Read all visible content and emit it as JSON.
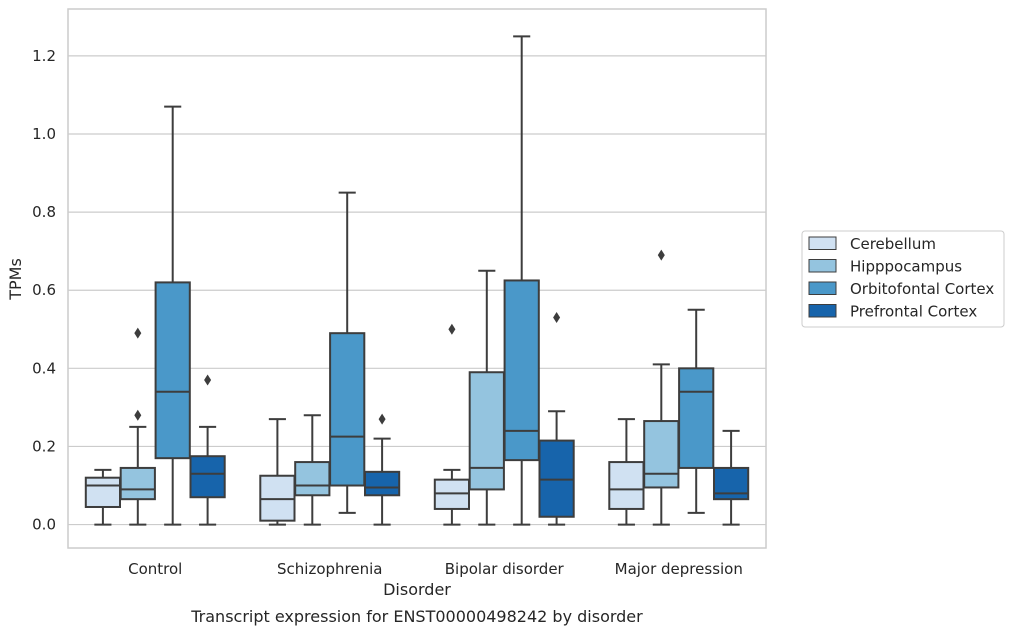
{
  "chart_data": {
    "type": "box",
    "xlabel": "Disorder",
    "ylabel": "TPMs",
    "caption": "Transcript expression for ENST00000498242 by disorder",
    "ylim": [
      -0.06,
      1.32
    ],
    "yticks": [
      0.0,
      0.2,
      0.4,
      0.6,
      0.8,
      1.0,
      1.2
    ],
    "ytick_labels": [
      "0.0",
      "0.2",
      "0.4",
      "0.6",
      "0.8",
      "1.0",
      "1.2"
    ],
    "grid": "horizontal",
    "legend_position": "right",
    "categories": [
      "Control",
      "Schizophrenia",
      "Bipolar disorder",
      "Major depression"
    ],
    "series": [
      {
        "name": "Cerebellum",
        "color": "#d0e1f2",
        "boxes": [
          {
            "whislo": 0.0,
            "q1": 0.045,
            "median": 0.1,
            "q3": 0.12,
            "whishi": 0.14,
            "fliers": []
          },
          {
            "whislo": 0.0,
            "q1": 0.01,
            "median": 0.065,
            "q3": 0.125,
            "whishi": 0.27,
            "fliers": []
          },
          {
            "whislo": 0.0,
            "q1": 0.04,
            "median": 0.08,
            "q3": 0.115,
            "whishi": 0.14,
            "fliers": [
              0.5
            ]
          },
          {
            "whislo": 0.0,
            "q1": 0.04,
            "median": 0.09,
            "q3": 0.16,
            "whishi": 0.27,
            "fliers": []
          }
        ]
      },
      {
        "name": "Hipppocampus",
        "color": "#94c4df",
        "boxes": [
          {
            "whislo": 0.0,
            "q1": 0.065,
            "median": 0.09,
            "q3": 0.145,
            "whishi": 0.25,
            "fliers": [
              0.28,
              0.49
            ]
          },
          {
            "whislo": 0.0,
            "q1": 0.075,
            "median": 0.1,
            "q3": 0.16,
            "whishi": 0.28,
            "fliers": []
          },
          {
            "whislo": 0.0,
            "q1": 0.09,
            "median": 0.145,
            "q3": 0.39,
            "whishi": 0.65,
            "fliers": []
          },
          {
            "whislo": 0.0,
            "q1": 0.095,
            "median": 0.13,
            "q3": 0.265,
            "whishi": 0.41,
            "fliers": [
              0.69
            ]
          }
        ]
      },
      {
        "name": "Orbitofontal Cortex",
        "color": "#4a98c9",
        "boxes": [
          {
            "whislo": 0.0,
            "q1": 0.17,
            "median": 0.34,
            "q3": 0.62,
            "whishi": 1.07,
            "fliers": []
          },
          {
            "whislo": 0.03,
            "q1": 0.1,
            "median": 0.225,
            "q3": 0.49,
            "whishi": 0.85,
            "fliers": []
          },
          {
            "whislo": 0.0,
            "q1": 0.165,
            "median": 0.24,
            "q3": 0.625,
            "whishi": 1.25,
            "fliers": []
          },
          {
            "whislo": 0.03,
            "q1": 0.145,
            "median": 0.34,
            "q3": 0.4,
            "whishi": 0.55,
            "fliers": []
          }
        ]
      },
      {
        "name": "Prefrontal Cortex",
        "color": "#1764ab",
        "boxes": [
          {
            "whislo": 0.0,
            "q1": 0.07,
            "median": 0.13,
            "q3": 0.175,
            "whishi": 0.25,
            "fliers": [
              0.37
            ]
          },
          {
            "whislo": 0.0,
            "q1": 0.075,
            "median": 0.095,
            "q3": 0.135,
            "whishi": 0.22,
            "fliers": [
              0.27
            ]
          },
          {
            "whislo": 0.0,
            "q1": 0.02,
            "median": 0.115,
            "q3": 0.215,
            "whishi": 0.29,
            "fliers": [
              0.53
            ]
          },
          {
            "whislo": 0.0,
            "q1": 0.065,
            "median": 0.08,
            "q3": 0.145,
            "whishi": 0.24,
            "fliers": []
          }
        ]
      }
    ]
  }
}
